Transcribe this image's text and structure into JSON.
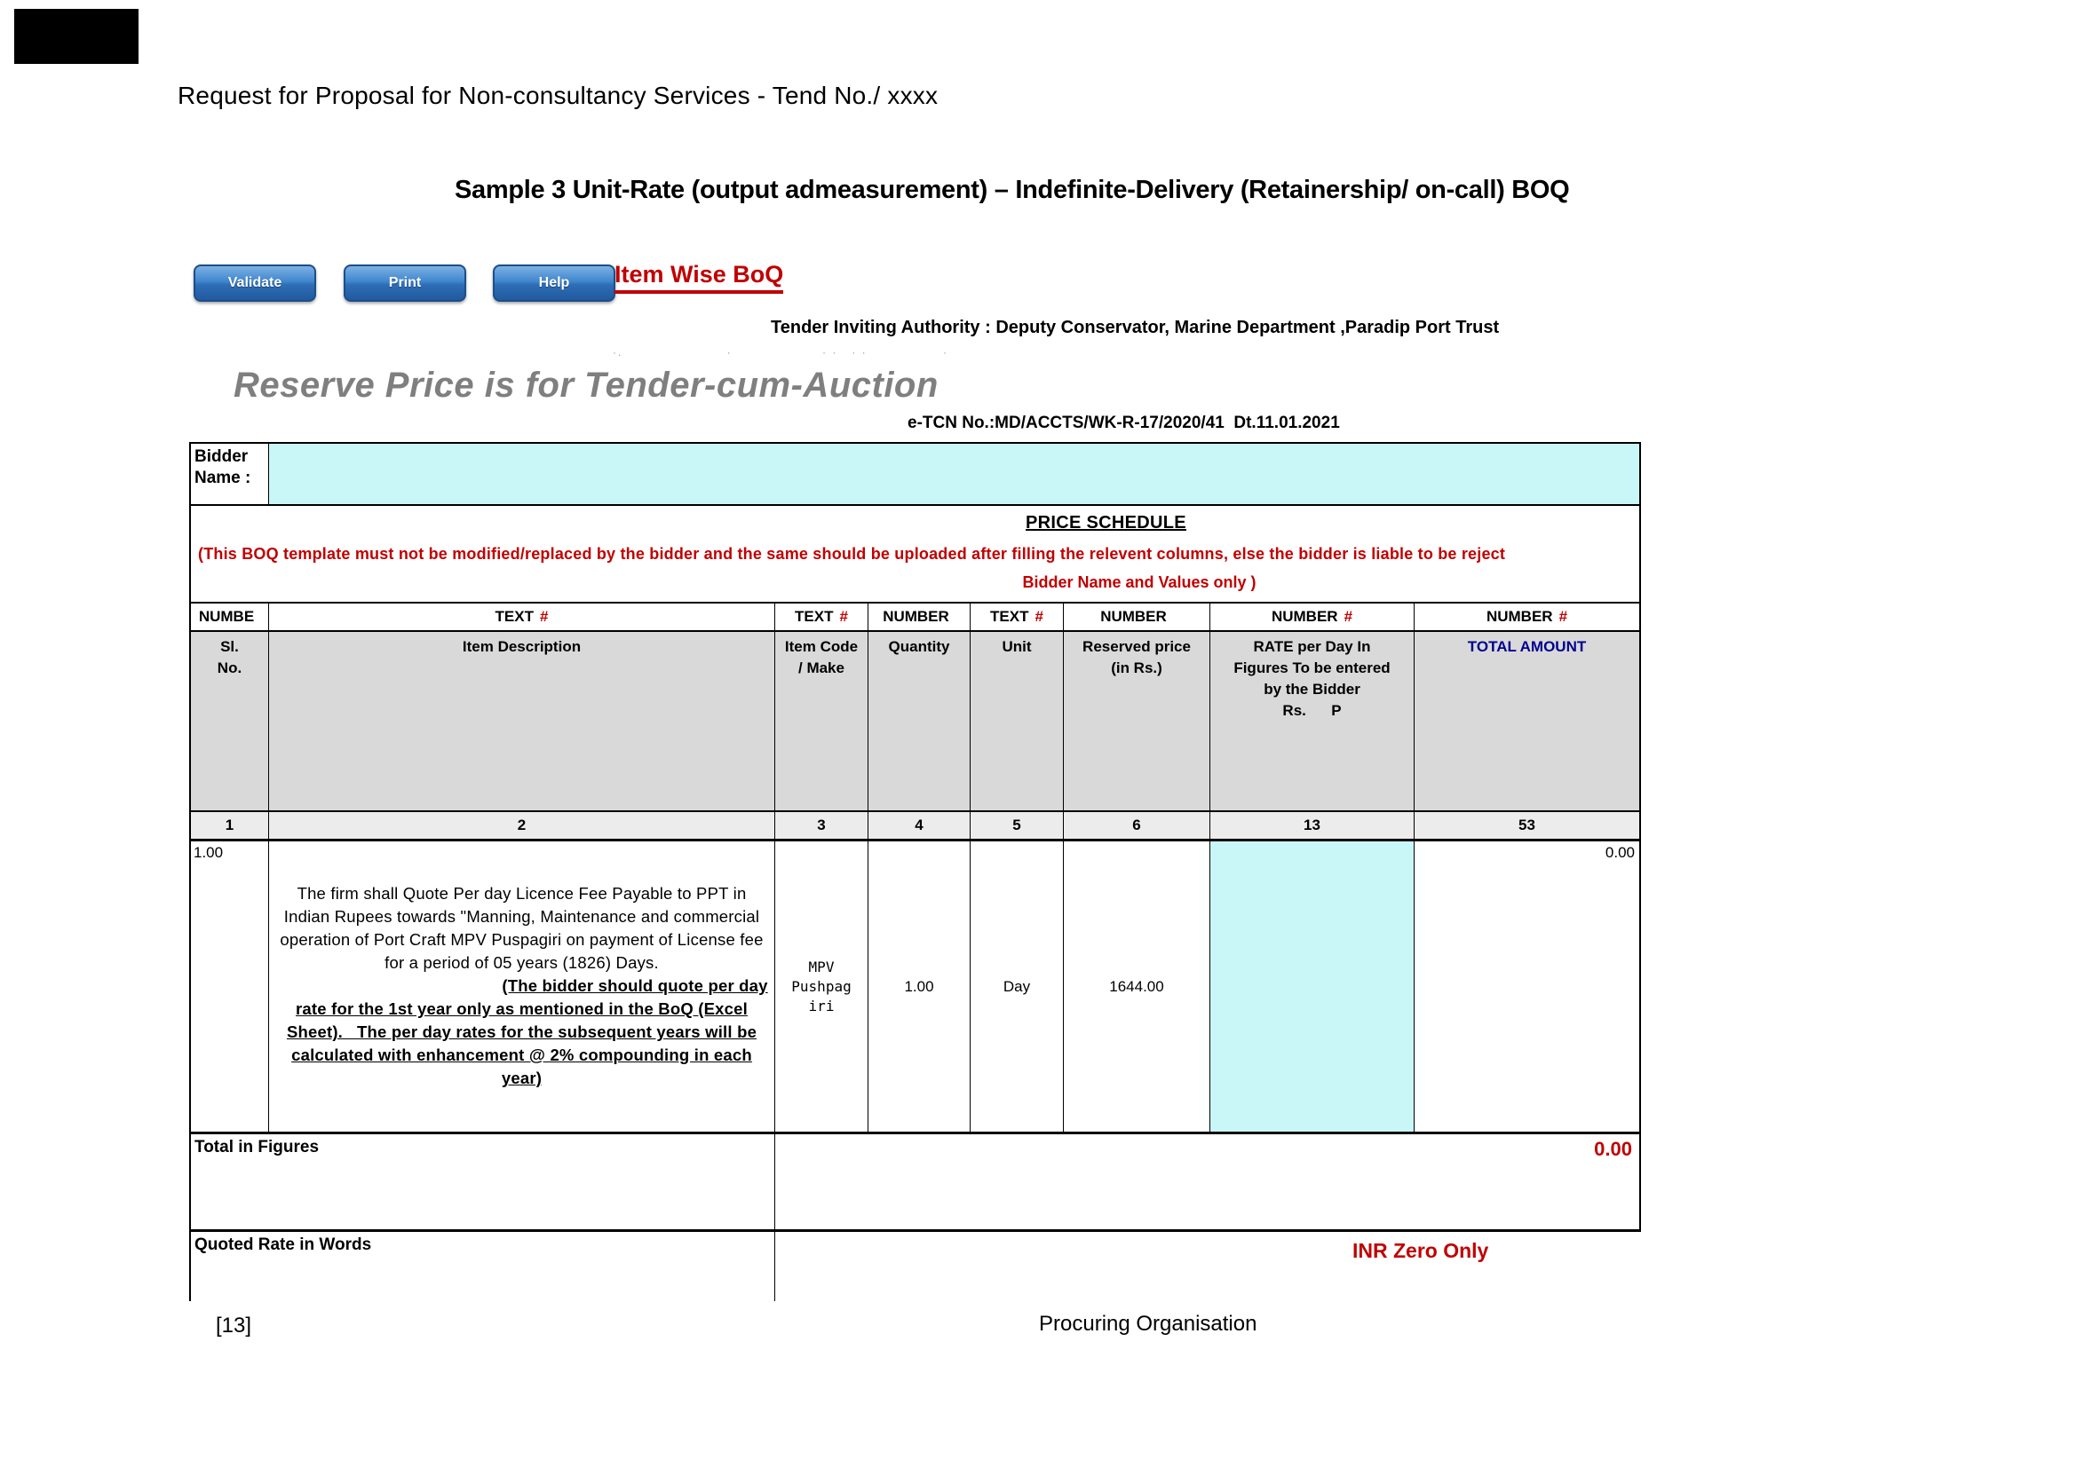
{
  "page": {
    "header": "Request for Proposal for Non-consultancy Services - Tend No./ xxxx",
    "title": "Sample 3 Unit-Rate (output admeasurement) – Indefinite-Delivery (Retainership/ on-call) BOQ",
    "footer_page_number": "[13]",
    "footer_org": "Procuring Organisation",
    "scan_artifacts": "·.                      ·                   · ·   · ·                ·"
  },
  "toolbar": {
    "validate_label": "Validate",
    "print_label": "Print",
    "help_label": "Help",
    "sheet_link": "Item Wise BoQ"
  },
  "boq": {
    "tender_authority": "Tender Inviting Authority : Deputy Conservator, Marine Department ,Paradip Port Trust",
    "watermark": "Reserve Price is for Tender-cum-Auction",
    "etcn": "e-TCN No.:MD/ACCTS/WK-R-17/2020/41  Dt.11.01.2021",
    "bidder_label": "Bidder\nName :",
    "bidder_value": "",
    "schedule_title": "PRICE SCHEDULE",
    "notice_line1": "(This BOQ template must not be modified/replaced by the bidder and the same should be uploaded after filling the relevent columns, else the bidder is liable to be reject",
    "notice_line2": "Bidder Name and Values only )",
    "type_row": [
      {
        "t": "NUMBE",
        "h": ""
      },
      {
        "t": "TEXT",
        "h": "#"
      },
      {
        "t": "TEXT",
        "h": "#"
      },
      {
        "t": "NUMBER",
        "h": ""
      },
      {
        "t": "TEXT",
        "h": "#"
      },
      {
        "t": "NUMBER",
        "h": ""
      },
      {
        "t": "NUMBER",
        "h": "#"
      },
      {
        "t": "NUMBER",
        "h": "#"
      }
    ],
    "header_row": [
      "Sl.\nNo.",
      "Item Description",
      "Item Code\n/ Make",
      "Quantity",
      "Unit",
      "Reserved price\n(in Rs.)",
      "RATE per Day In\nFigures To be entered\nby the Bidder\nRs.      P",
      "TOTAL AMOUNT"
    ],
    "index_row": [
      "1",
      "2",
      "3",
      "4",
      "5",
      "6",
      "13",
      "53"
    ],
    "item": {
      "sl_no": "1.00",
      "description_normal": "The firm shall Quote Per day Licence Fee Payable to PPT in Indian Rupees towards \"Manning, Maintenance and commercial operation of Port Craft MPV Puspagiri on payment of License fee for a period of 05 years (1826) Days.",
      "description_underlined": "(The bidder should quote per day rate for the 1st year only as mentioned in the BoQ (Excel Sheet).   The per day rates for the subsequent years will be calculated with enhancement @ 2% compounding in each year)",
      "item_code": "MPV\nPushpag\niri",
      "quantity": "1.00",
      "unit": "Day",
      "reserved_price": "1644.00",
      "rate_entered": "",
      "total_amount": "0.00"
    },
    "total_label": "Total in Figures",
    "total_value": "0.00",
    "quoted_label": "Quoted Rate in Words",
    "quoted_value": "INR Zero Only"
  },
  "colors": {
    "accent_red": "#c00000",
    "navy": "#00008f",
    "entry_cyan": "#c9f6f6",
    "header_gray": "#d9d9d9",
    "button_blue": "#2e6db6",
    "watermark_gray": "#7f7f7f"
  }
}
